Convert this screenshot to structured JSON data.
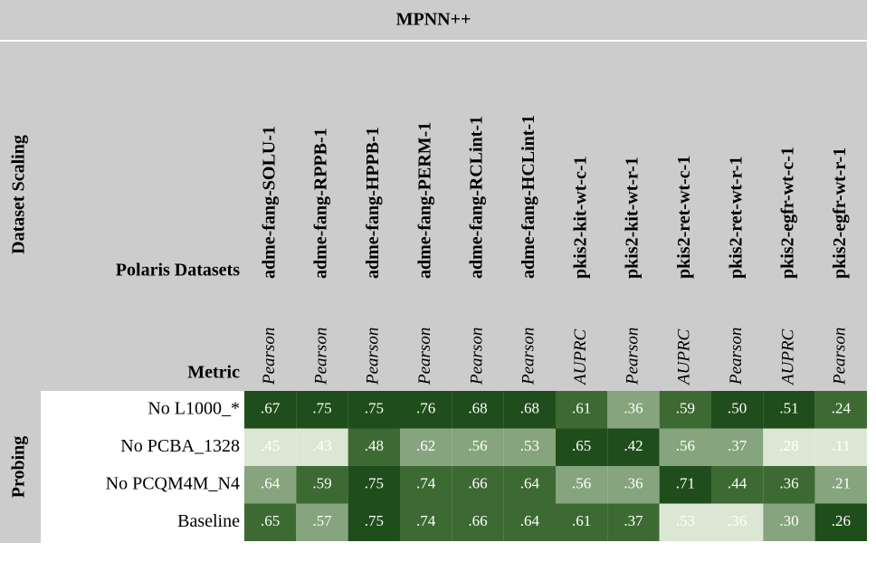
{
  "table": {
    "title": "MPNN++",
    "section_label": "Dataset Scaling",
    "group_label": "Probing",
    "datasets_label": "Polaris Datasets",
    "metric_label": "Metric",
    "columns": [
      {
        "name": "adme-fang-SOLU-1",
        "metric": "Pearson"
      },
      {
        "name": "adme-fang-RPPB-1",
        "metric": "Pearson"
      },
      {
        "name": "adme-fang-HPPB-1",
        "metric": "Pearson"
      },
      {
        "name": "adme-fang-PERM-1",
        "metric": "Pearson"
      },
      {
        "name": "adme-fang-RCLint-1",
        "metric": "Pearson"
      },
      {
        "name": "adme-fang-HCLint-1",
        "metric": "Pearson"
      },
      {
        "name": "pkis2-kit-wt-c-1",
        "metric": "AUPRC"
      },
      {
        "name": "pkis2-kit-wt-r-1",
        "metric": "Pearson"
      },
      {
        "name": "pkis2-ret-wt-c-1",
        "metric": "AUPRC"
      },
      {
        "name": "pkis2-ret-wt-r-1",
        "metric": "Pearson"
      },
      {
        "name": "pkis2-egfr-wt-c-1",
        "metric": "AUPRC"
      },
      {
        "name": "pkis2-egfr-wt-r-1",
        "metric": "Pearson"
      }
    ],
    "rows": [
      {
        "label": "No L1000_*",
        "values": [
          ".67",
          ".75",
          ".75",
          ".76",
          ".68",
          ".68",
          ".61",
          ".36",
          ".59",
          ".50",
          ".51",
          ".24"
        ]
      },
      {
        "label": "No PCBA_1328",
        "values": [
          ".45",
          ".43",
          ".48",
          ".62",
          ".56",
          ".53",
          ".65",
          ".42",
          ".56",
          ".37",
          ".28",
          ".11"
        ]
      },
      {
        "label": "No PCQM4M_N4",
        "values": [
          ".64",
          ".59",
          ".75",
          ".74",
          ".66",
          ".64",
          ".56",
          ".36",
          ".71",
          ".44",
          ".36",
          ".21"
        ]
      },
      {
        "label": "Baseline",
        "values": [
          ".65",
          ".57",
          ".75",
          ".74",
          ".66",
          ".64",
          ".61",
          ".37",
          ".53",
          ".36",
          ".30",
          ".26"
        ]
      }
    ]
  }
}
